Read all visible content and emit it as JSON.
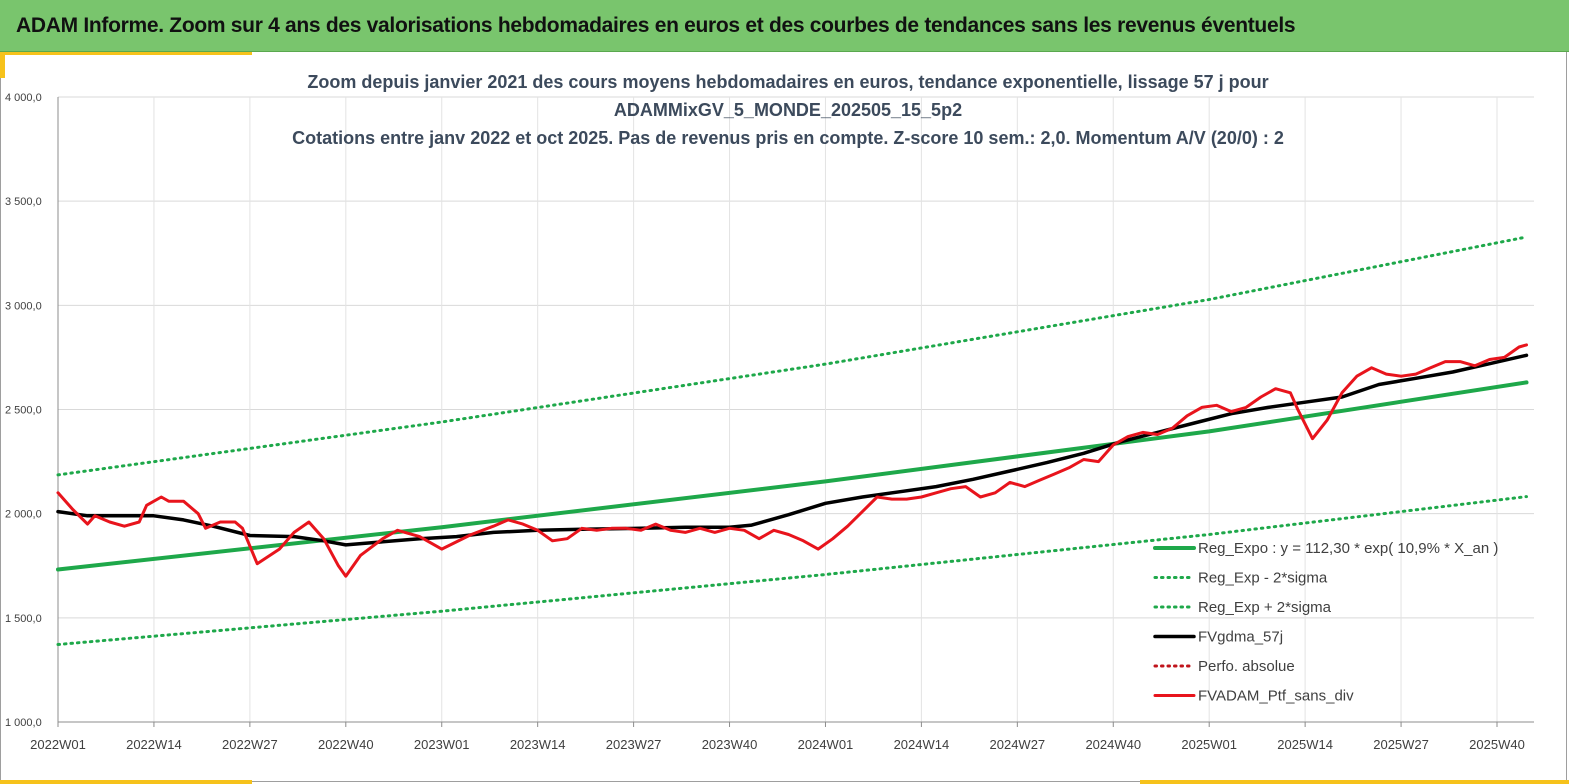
{
  "header": {
    "title": "ADAM Informe. Zoom sur 4 ans des valorisations hebdomadaires en euros et des courbes de tendances sans les revenus éventuels"
  },
  "colors": {
    "header_bg": "#79c56d",
    "accent": "#f6c21b",
    "trend": "#1ea84a",
    "price": "#e8141c",
    "ma": "#000000",
    "perf": "#c0141c"
  },
  "chart_data": {
    "type": "line",
    "title_lines": [
      "Zoom depuis janvier 2021 des cours moyens hebdomadaires  en euros, tendance exponentielle, lissage 57 j pour",
      "ADAMMixGV_5_MONDE_202505_15_5p2",
      "Cotations entre janv 2022 et oct 2025. Pas de revenus pris en compte. Z-score 10 sem.: 2,0. Momentum A/V (20/0) : 2"
    ],
    "ylim": [
      1000,
      4000
    ],
    "y_ticks": [
      1000,
      1500,
      2000,
      2500,
      3000,
      3500,
      4000
    ],
    "y_tick_labels": [
      "1 000,0",
      "1 500,0",
      "2 000,0",
      "2 500,0",
      "3 000,0",
      "3 500,0",
      "4 000,0"
    ],
    "x_range": [
      1,
      196
    ],
    "x_ticks": [
      1,
      14,
      27,
      40,
      53,
      66,
      79,
      92,
      105,
      118,
      131,
      144,
      157,
      170,
      183,
      196
    ],
    "x_tick_labels": [
      "2022W01",
      "2022W14",
      "2022W27",
      "2022W40",
      "2023W01",
      "2023W14",
      "2023W27",
      "2023W40",
      "2024W01",
      "2024W14",
      "2024W27",
      "2024W40",
      "2025W01",
      "2025W14",
      "2025W27",
      "2025W40"
    ],
    "grid": true,
    "legend_position": "bottom-right",
    "series": [
      {
        "name": "Reg_Expo : y = 112,30 * exp( 10,9% *  X_an )",
        "style": "solid",
        "color": "#1ea84a",
        "x": [
          1,
          53,
          105,
          157,
          200
        ],
        "values": [
          1732,
          1935,
          2155,
          2395,
          2630
        ]
      },
      {
        "name": "Reg_Exp - 2*sigma",
        "style": "dotted",
        "color": "#1ea84a",
        "x": [
          1,
          53,
          105,
          157,
          200
        ],
        "values": [
          1372,
          1532,
          1708,
          1900,
          2082
        ]
      },
      {
        "name": "Reg_Exp + 2*sigma",
        "style": "dotted",
        "color": "#1ea84a",
        "x": [
          1,
          53,
          105,
          157,
          200
        ],
        "values": [
          2186,
          2440,
          2718,
          3028,
          3328
        ]
      },
      {
        "name": "FVgdma_57j",
        "style": "solid",
        "color": "#000000",
        "x": [
          1,
          5,
          10,
          14,
          18,
          22,
          27,
          33,
          37,
          40,
          45,
          50,
          55,
          60,
          66,
          72,
          80,
          86,
          92,
          95,
          100,
          105,
          110,
          115,
          120,
          125,
          130,
          135,
          140,
          145,
          150,
          155,
          160,
          165,
          170,
          175,
          180,
          185,
          190,
          195,
          200
        ],
        "values": [
          2010,
          1990,
          1990,
          1990,
          1970,
          1940,
          1895,
          1890,
          1870,
          1850,
          1865,
          1880,
          1890,
          1910,
          1920,
          1925,
          1930,
          1935,
          1935,
          1945,
          1995,
          2050,
          2080,
          2105,
          2130,
          2165,
          2205,
          2245,
          2290,
          2345,
          2390,
          2435,
          2480,
          2510,
          2535,
          2560,
          2620,
          2650,
          2680,
          2720,
          2760
        ]
      },
      {
        "name": "Perfo. absolue",
        "style": "dotted",
        "color": "#c0141c",
        "x": [],
        "values": []
      },
      {
        "name": "FVADAM_Ptf_sans_div",
        "style": "solid",
        "color": "#e8141c",
        "x": [
          1,
          3,
          5,
          6,
          8,
          10,
          12,
          13,
          15,
          16,
          18,
          20,
          21,
          23,
          25,
          26,
          28,
          31,
          33,
          35,
          37,
          39,
          40,
          42,
          45,
          47,
          50,
          53,
          57,
          60,
          62,
          64,
          66,
          68,
          70,
          72,
          74,
          76,
          78,
          80,
          82,
          84,
          86,
          88,
          90,
          92,
          94,
          96,
          98,
          100,
          102,
          104,
          106,
          108,
          110,
          112,
          114,
          116,
          118,
          120,
          122,
          124,
          126,
          128,
          130,
          132,
          134,
          136,
          138,
          140,
          142,
          144,
          146,
          148,
          150,
          152,
          154,
          156,
          158,
          160,
          162,
          164,
          166,
          168,
          169,
          171,
          173,
          175,
          177,
          179,
          181,
          183,
          185,
          187,
          189,
          191,
          193,
          195,
          197,
          199,
          200
        ],
        "values": [
          2100,
          2020,
          1950,
          1990,
          1960,
          1940,
          1960,
          2040,
          2080,
          2060,
          2060,
          2000,
          1930,
          1960,
          1960,
          1930,
          1760,
          1830,
          1910,
          1960,
          1880,
          1750,
          1700,
          1800,
          1880,
          1920,
          1890,
          1830,
          1900,
          1940,
          1970,
          1950,
          1920,
          1870,
          1880,
          1930,
          1920,
          1930,
          1930,
          1920,
          1950,
          1920,
          1910,
          1930,
          1910,
          1930,
          1920,
          1880,
          1920,
          1900,
          1870,
          1830,
          1880,
          1940,
          2010,
          2080,
          2070,
          2070,
          2080,
          2100,
          2120,
          2130,
          2080,
          2100,
          2150,
          2130,
          2160,
          2190,
          2220,
          2260,
          2250,
          2330,
          2370,
          2390,
          2380,
          2410,
          2470,
          2510,
          2520,
          2490,
          2510,
          2560,
          2600,
          2580,
          2500,
          2360,
          2450,
          2580,
          2660,
          2700,
          2670,
          2660,
          2670,
          2700,
          2730,
          2730,
          2710,
          2740,
          2750,
          2800,
          2810
        ]
      }
    ]
  }
}
